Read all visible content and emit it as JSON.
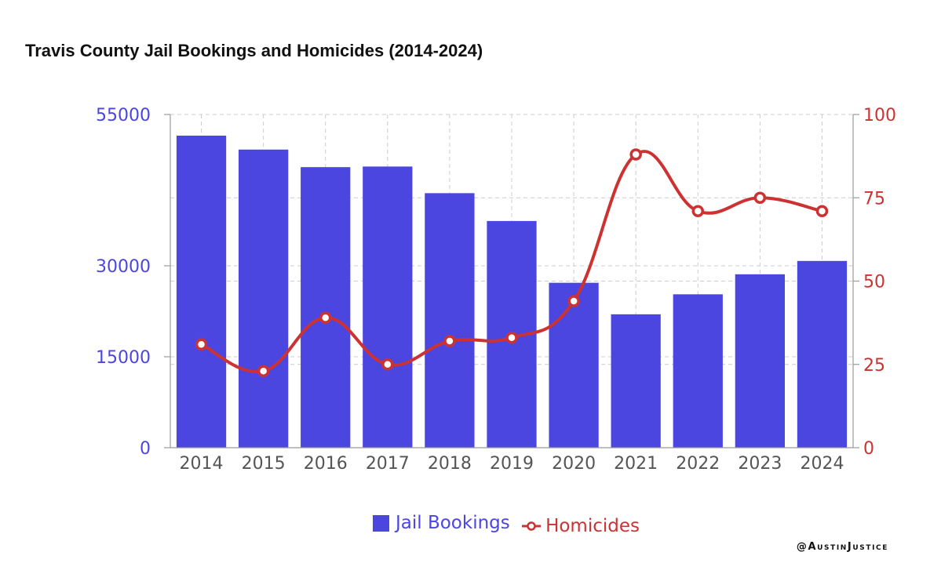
{
  "title": "Travis County Jail Bookings and Homicides (2014-2024)",
  "watermark": "@AustinJustice",
  "colors": {
    "bar": "#4c46e0",
    "line": "#cc3232",
    "left_axis_text": "#4c46e0",
    "right_axis_text": "#cc3232",
    "x_axis_text": "#555555",
    "grid": "#cccccc"
  },
  "chart_data": {
    "type": "bar",
    "title": "Travis County Jail Bookings and Homicides (2014-2024)",
    "categories": [
      "2014",
      "2015",
      "2016",
      "2017",
      "2018",
      "2019",
      "2020",
      "2021",
      "2022",
      "2023",
      "2024"
    ],
    "series": [
      {
        "name": "Jail Bookings",
        "type": "bar",
        "axis": "left",
        "values": [
          51500,
          49200,
          46300,
          46400,
          42000,
          37400,
          27200,
          22000,
          25300,
          28600,
          30800
        ]
      },
      {
        "name": "Homicides",
        "type": "line",
        "axis": "right",
        "smooth": true,
        "marker": "open-circle",
        "values": [
          31,
          23,
          39,
          25,
          32,
          33,
          44,
          88,
          71,
          75,
          71
        ]
      }
    ],
    "left_axis": {
      "ticks": [
        "0",
        "15000",
        "30000",
        "55000"
      ],
      "tick_values": [
        0,
        15000,
        30000,
        55000
      ]
    },
    "right_axis": {
      "ticks": [
        "0",
        "25",
        "50",
        "75",
        "100"
      ],
      "tick_values": [
        0,
        25,
        50,
        75,
        100
      ]
    },
    "grid": true,
    "legend": {
      "position": "bottom",
      "entries": [
        "Jail Bookings",
        "Homicides"
      ]
    }
  }
}
